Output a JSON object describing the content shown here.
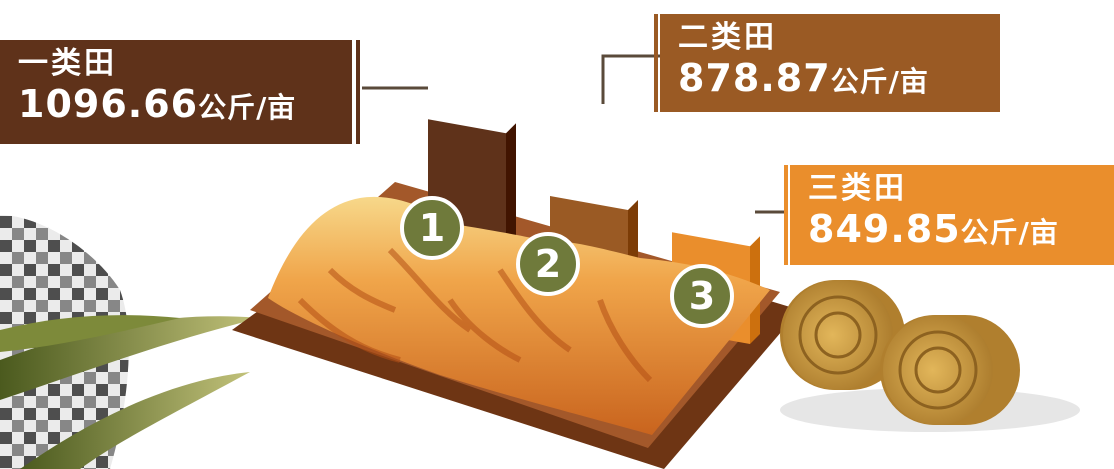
{
  "chart_data": {
    "type": "bar",
    "unit": "公斤/亩",
    "categories": [
      "一类田",
      "二类田",
      "三类田"
    ],
    "values": [
      1096.66,
      878.87,
      849.85
    ],
    "markers": [
      "1",
      "2",
      "3"
    ],
    "labels": [
      {
        "category": "一类田",
        "value_text": "1096.66",
        "unit": "公斤/亩"
      },
      {
        "category": "二类田",
        "value_text": "878.87",
        "unit": "公斤/亩"
      },
      {
        "category": "三类田",
        "value_text": "849.85",
        "unit": "公斤/亩"
      }
    ]
  },
  "colors": {
    "bar1": "#5f321a",
    "bar2": "#9a5a24",
    "bar3": "#ea8e2c",
    "label1": "#5f321a",
    "label2": "#9a5a24",
    "label3": "#ea8e2c",
    "marker": "#6f7a3b",
    "field": "#8f4d1f",
    "crop": "#e9913a",
    "hay": "#c9973e"
  }
}
